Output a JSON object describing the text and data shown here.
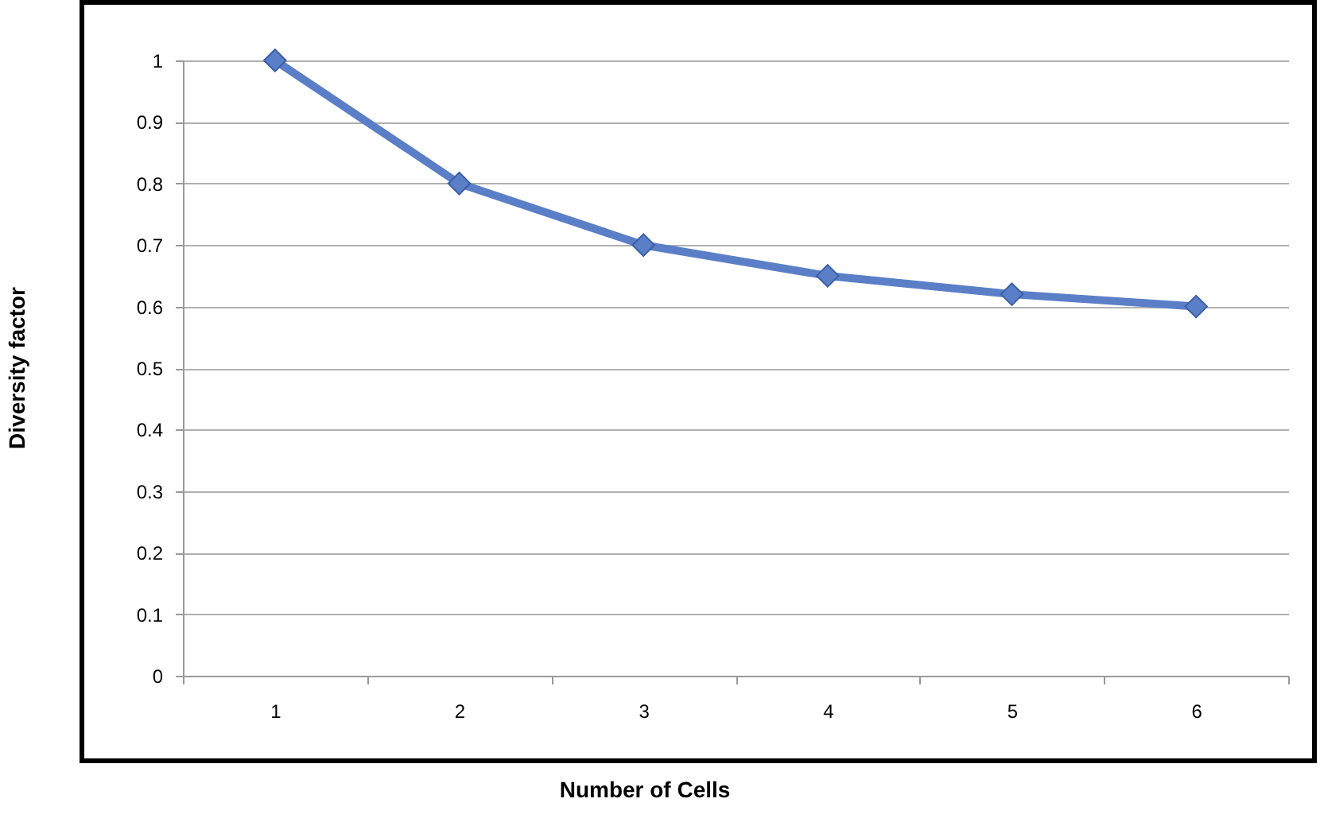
{
  "chart_data": {
    "type": "line",
    "xlabel": "Number of Cells",
    "ylabel": "Diversity factor",
    "categories": [
      "1",
      "2",
      "3",
      "4",
      "5",
      "6"
    ],
    "series": [
      {
        "color": "#5b7fc7",
        "values": [
          1,
          0.8,
          0.7,
          0.65,
          0.62,
          0.6
        ]
      }
    ],
    "ylim": [
      0,
      1
    ],
    "yticks": [
      0,
      0.1,
      0.2,
      0.3,
      0.4,
      0.5,
      0.6,
      0.7,
      0.8,
      0.9,
      1
    ],
    "grid": "y",
    "marker": "diamond",
    "line_style": "solid"
  }
}
